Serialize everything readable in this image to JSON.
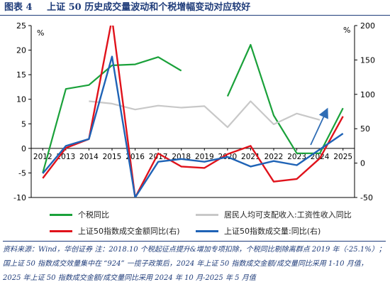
{
  "figure": {
    "number": "图表 4",
    "title": "上证 50 历史成交量波动和个税增幅变动对应较好"
  },
  "chart_data": {
    "type": "line",
    "categories": [
      "2012",
      "2013",
      "2014",
      "2015",
      "2016",
      "2017",
      "2018",
      "2019",
      "2020",
      "2021",
      "2022",
      "2023",
      "2024",
      "2025"
    ],
    "left_axis": {
      "unit": "%",
      "ylim": [
        -10,
        25
      ],
      "ticks": [
        -10,
        -5,
        0,
        5,
        10,
        15,
        20,
        25
      ]
    },
    "right_axis": {
      "unit": "%",
      "ylim": [
        -50,
        200
      ],
      "ticks": [
        -50,
        0,
        50,
        100,
        150,
        200
      ]
    },
    "grid": false,
    "legend_position": "bottom",
    "series": [
      {
        "name": "个税同比",
        "axis": "left",
        "color": "#1aa13a",
        "x": [
          2012,
          2013,
          2014,
          2015,
          2016,
          2017,
          2018,
          null,
          2020,
          2021,
          2022,
          2023,
          2024,
          2025
        ],
        "values": [
          -5.0,
          12.1,
          12.9,
          16.9,
          17.1,
          18.6,
          15.8,
          null,
          10.6,
          21.1,
          6.7,
          -1.0,
          -1.0,
          8.2
        ]
      },
      {
        "name": "居民人均可支配收入:工资性收入同比",
        "axis": "left",
        "color": "#c8c8c8",
        "x": [
          2014,
          2015,
          2016,
          2017,
          2018,
          2019,
          2020,
          2021,
          2022,
          2023,
          2024
        ],
        "values": [
          9.6,
          9.1,
          7.9,
          8.7,
          8.3,
          8.6,
          4.3,
          9.6,
          4.9,
          7.1,
          5.8
        ]
      },
      {
        "name": "上证50指数成交金额同比(右)",
        "axis": "right",
        "color": "#e0121b",
        "x": [
          2012,
          2013,
          2014,
          2015,
          2016,
          2017,
          2018,
          2019,
          2020,
          2021,
          2022,
          2023,
          2024,
          2025
        ],
        "values": [
          -22,
          22,
          35,
          210,
          -50,
          14,
          -5,
          -7,
          13,
          25,
          -27,
          -23,
          7,
          68
        ]
      },
      {
        "name": "上证50指数成交量:同比(右)",
        "axis": "right",
        "color": "#1f63b6",
        "x": [
          2012,
          2013,
          2014,
          2015,
          2016,
          2017,
          2018,
          2019,
          2020,
          2021,
          2022,
          2023,
          2024,
          2025
        ],
        "values": [
          -15,
          25,
          35,
          155,
          -50,
          2,
          6,
          2,
          9,
          -5,
          3,
          -3,
          20,
          43
        ]
      }
    ],
    "annotation_arrow": {
      "from": [
        2023.6,
        0.7
      ],
      "to": [
        2024.3,
        7.8
      ],
      "color": "#2f6db5"
    }
  },
  "source_note": "资料来源：Wind，华创证券  注：2018.10 个税起征点提升&增加专项扣除，个税同比剔除离群点 2019 年（-25.1%）；国上证 50 指数成交效量集中在 “924” 一揽子政策后，2024 年上证 50 指数成交金额/成交量同比采用 1-10 月值，2025 年上证 50 指数成交金额/成交量同比采用 2024 年 10 月-2025 年 5 月值"
}
